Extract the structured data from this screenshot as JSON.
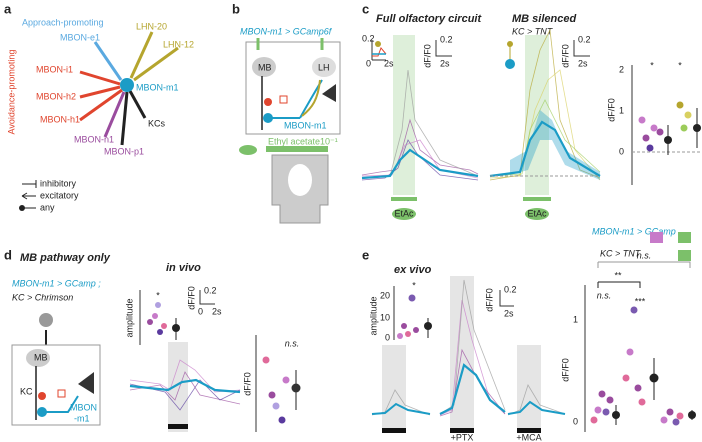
{
  "panel_a": {
    "letter": "a",
    "approach_label": "Approach-promoting",
    "avoidance_label": "Avoidance-promoting",
    "nodes": [
      "MBON-e1",
      "LHN-20",
      "LHN-12",
      "MBON-i1",
      "MBON-h2",
      "MBON-m1",
      "MBON-h1",
      "KCs",
      "MBON-n1",
      "MBON-p1"
    ],
    "legend": [
      "inhibitory",
      "excitatory",
      "any"
    ]
  },
  "panel_b": {
    "letter": "b",
    "genotype": "MBON-m1 > GCamp6f",
    "mb_label": "MB",
    "lh_label": "LH",
    "mbon_label": "MBON-m1",
    "odor": "Ethyl acetate10⁻¹"
  },
  "panel_c": {
    "letter": "c",
    "title_left": "Full olfactory circuit",
    "title_right": "MB silenced",
    "genotype_right": "KC > TNT",
    "odor_left": "EtAc",
    "odor_right": "EtAc",
    "inset": {
      "y": "0.2",
      "zero": "0",
      "x": "2s"
    },
    "scale_left": {
      "y": "0.2",
      "x": "2s",
      "unit": "dF/F0"
    },
    "scale_right": {
      "y": "0.2",
      "x": "2s",
      "unit": "dF/F0"
    },
    "summary": {
      "yticks": [
        "2",
        "1",
        "0"
      ],
      "ylabel": "dF/F0",
      "sig": [
        "*",
        "*"
      ]
    },
    "legend": [
      "MBON-m1 > GCamp",
      "KC > TNT"
    ]
  },
  "panel_d": {
    "letter": "d",
    "title": "MB pathway only",
    "genotype": [
      "MBON-m1 > GCamp ;",
      "KC > Chrimson"
    ],
    "mb_label": "MB",
    "kc_label": "KC",
    "mbon_label": [
      "MBON",
      "-m1"
    ],
    "subtitle": "in vivo",
    "sig_inset": "*",
    "inset_ylabel": "amplitude",
    "scale": {
      "y": "0.2",
      "zero": "0",
      "x": "2s",
      "unit": "dF/F0"
    },
    "summary_ylabel": "dF/F0",
    "summary_sig": "n.s."
  },
  "panel_e": {
    "letter": "e",
    "title": "ex vivo",
    "sig_inset": "*",
    "inset_yticks": [
      "20",
      "10",
      "0"
    ],
    "inset_ylabel": "amplitude",
    "conditions": [
      "+PTX",
      "+MCA"
    ],
    "scale": {
      "y": "0.2",
      "x": "2s",
      "unit": "dF/F0"
    },
    "summary_yticks": [
      "1",
      "0"
    ],
    "summary_ylabel": "dF/F0",
    "summary_sig": [
      "n.s.",
      "**",
      "n.s.",
      "***"
    ]
  }
}
